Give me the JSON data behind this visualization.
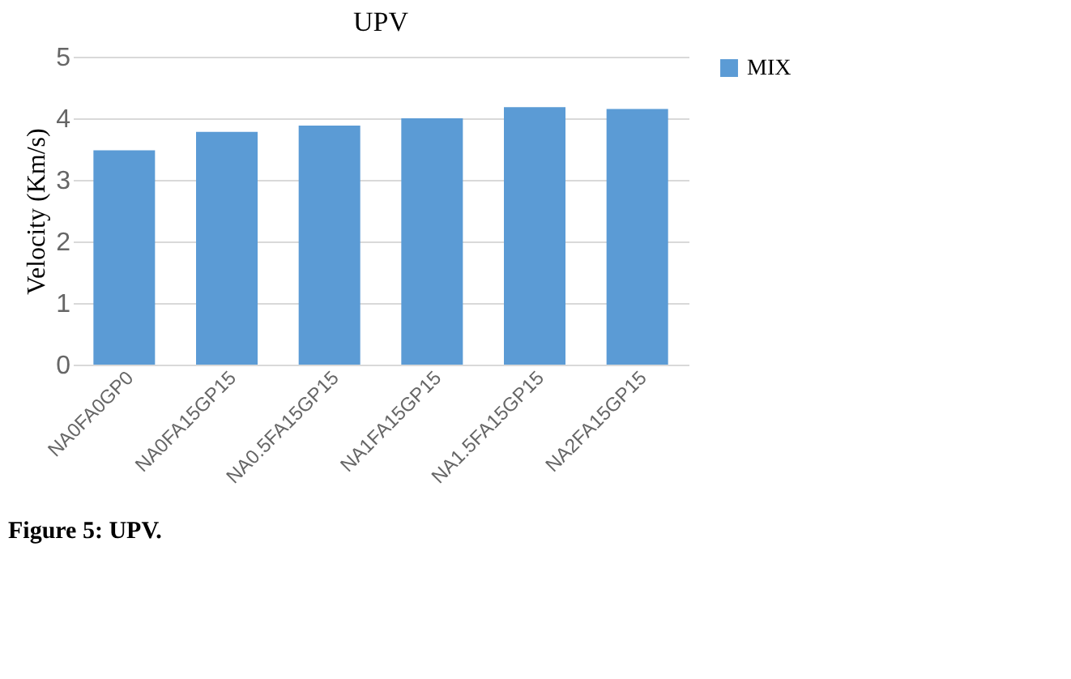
{
  "chart_data": {
    "type": "bar",
    "title": "UPV",
    "ylabel": "Velocity (Km/s)",
    "categories": [
      "NA0FA0GP0",
      "NA0FA15GP15",
      "NA0.5FA15GP15",
      "NA1FA15GP15",
      "NA1.5FA15GP15",
      "NA2FA15GP15"
    ],
    "series": [
      {
        "name": "MIX",
        "color": "#5b9bd5",
        "values": [
          3.48,
          3.78,
          3.88,
          4.0,
          4.18,
          4.15
        ]
      }
    ],
    "ylim": [
      0,
      5
    ],
    "yticks": [
      0,
      1,
      2,
      3,
      4,
      5
    ],
    "grid": "y",
    "legend": "right",
    "annotations": [
      "Figure 5: UPV."
    ]
  }
}
